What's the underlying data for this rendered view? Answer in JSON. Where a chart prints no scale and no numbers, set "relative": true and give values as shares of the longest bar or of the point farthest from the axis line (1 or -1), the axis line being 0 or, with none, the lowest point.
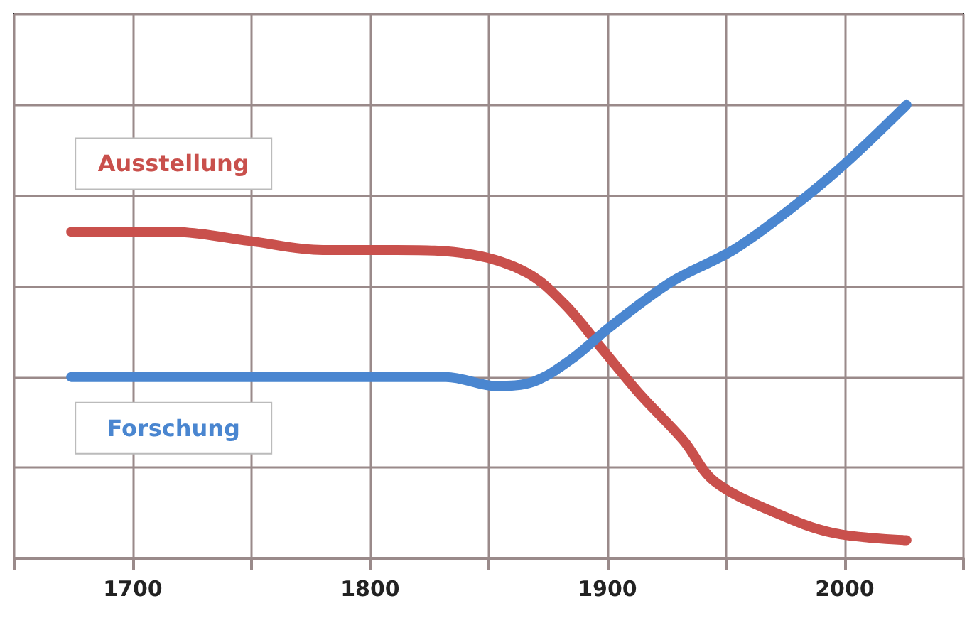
{
  "chart_data": {
    "type": "line",
    "relative": true,
    "xlim": [
      1650,
      2050
    ],
    "xticks": [
      {
        "value": 1650,
        "label": null
      },
      1700,
      {
        "value": 1750,
        "label": null
      },
      1800,
      {
        "value": 1850,
        "label": null
      },
      1900,
      {
        "value": 1950,
        "label": null
      },
      2000,
      {
        "value": 2050,
        "label": null
      }
    ],
    "grid": true,
    "legend": false,
    "tick_labels": "x",
    "line_style": "solid",
    "series": [
      {
        "name": "Ausstellung",
        "color": "#c9504c",
        "x": [
          1674,
          1717,
          1749,
          1780,
          1811,
          1843,
          1866,
          1882,
          1898,
          1914,
          1932,
          1945,
          1971,
          1995,
          2026
        ],
        "values": [
          0.72,
          0.72,
          0.7,
          0.68,
          0.68,
          0.67,
          0.63,
          0.56,
          0.46,
          0.36,
          0.26,
          0.17,
          0.1,
          0.056,
          0.04
        ]
      },
      {
        "name": "Forschung",
        "color": "#4a86d0",
        "x": [
          1674,
          1832,
          1853,
          1869,
          1885,
          1901,
          1927,
          1953,
          1977,
          2000,
          2026
        ],
        "values": [
          0.4,
          0.4,
          0.38,
          0.39,
          0.44,
          0.51,
          0.61,
          0.68,
          0.77,
          0.87,
          1.0
        ]
      }
    ]
  }
}
